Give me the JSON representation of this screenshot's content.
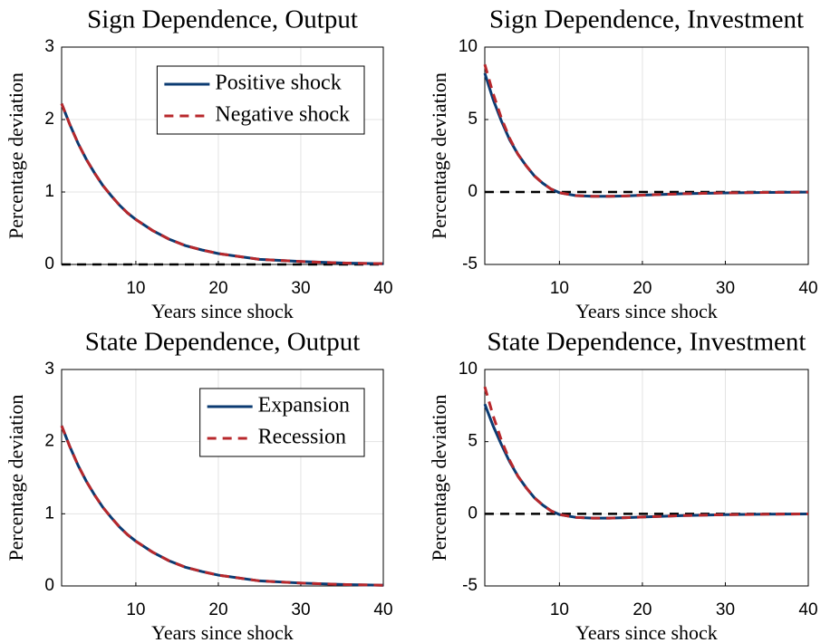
{
  "chart_data": [
    {
      "type": "line",
      "title": "Sign Dependence, Output",
      "xlabel": "Years since shock",
      "ylabel": "Percentage deviation",
      "x": [
        1,
        2,
        3,
        4,
        5,
        6,
        7,
        8,
        9,
        10,
        12,
        14,
        16,
        18,
        20,
        25,
        30,
        35,
        40
      ],
      "xlim": [
        1,
        40
      ],
      "xticks": [
        10,
        20,
        30,
        40
      ],
      "ylim": [
        0,
        3
      ],
      "yticks": [
        0,
        1,
        2,
        3
      ],
      "grid": true,
      "legend": "upper right",
      "reference_line": 0,
      "series": [
        {
          "name": "Positive shock",
          "color": "#0b3b72",
          "style": "solid",
          "values": [
            2.22,
            1.93,
            1.67,
            1.45,
            1.26,
            1.09,
            0.95,
            0.82,
            0.71,
            0.62,
            0.47,
            0.35,
            0.26,
            0.2,
            0.15,
            0.07,
            0.04,
            0.02,
            0.01
          ]
        },
        {
          "name": "Negative shock",
          "color": "#b8282c",
          "style": "dashed",
          "values": [
            2.22,
            1.93,
            1.67,
            1.45,
            1.26,
            1.09,
            0.95,
            0.82,
            0.71,
            0.62,
            0.47,
            0.35,
            0.26,
            0.2,
            0.15,
            0.07,
            0.04,
            0.02,
            0.01
          ]
        }
      ]
    },
    {
      "type": "line",
      "title": "Sign Dependence, Investment",
      "xlabel": "Years since shock",
      "ylabel": "Percentage deviation",
      "x": [
        1,
        2,
        3,
        4,
        5,
        6,
        7,
        8,
        9,
        10,
        12,
        14,
        16,
        18,
        20,
        25,
        30,
        35,
        40
      ],
      "xlim": [
        1,
        40
      ],
      "xticks": [
        10,
        20,
        30,
        40
      ],
      "ylim": [
        -5,
        10
      ],
      "yticks": [
        -5,
        0,
        5,
        10
      ],
      "grid": true,
      "reference_line": 0,
      "series": [
        {
          "color": "#0b3b72",
          "style": "solid",
          "values": [
            8.2,
            6.4,
            4.9,
            3.6,
            2.6,
            1.8,
            1.1,
            0.6,
            0.2,
            -0.05,
            -0.25,
            -0.3,
            -0.3,
            -0.27,
            -0.22,
            -0.12,
            -0.06,
            -0.03,
            -0.01
          ]
        },
        {
          "color": "#b8282c",
          "style": "dashed",
          "values": [
            8.8,
            6.8,
            5.1,
            3.7,
            2.6,
            1.8,
            1.1,
            0.6,
            0.2,
            -0.05,
            -0.25,
            -0.3,
            -0.3,
            -0.27,
            -0.22,
            -0.12,
            -0.06,
            -0.03,
            -0.01
          ]
        }
      ]
    },
    {
      "type": "line",
      "title": "State Dependence, Output",
      "xlabel": "Years since shock",
      "ylabel": "Percentage deviation",
      "x": [
        1,
        2,
        3,
        4,
        5,
        6,
        7,
        8,
        9,
        10,
        12,
        14,
        16,
        18,
        20,
        25,
        30,
        35,
        40
      ],
      "xlim": [
        1,
        40
      ],
      "xticks": [
        10,
        20,
        30,
        40
      ],
      "ylim": [
        0,
        3
      ],
      "yticks": [
        0,
        1,
        2,
        3
      ],
      "grid": true,
      "legend": "upper right",
      "series": [
        {
          "name": "Expansion",
          "color": "#0b3b72",
          "style": "solid",
          "values": [
            2.22,
            1.93,
            1.67,
            1.45,
            1.26,
            1.09,
            0.95,
            0.82,
            0.71,
            0.62,
            0.47,
            0.35,
            0.26,
            0.2,
            0.15,
            0.07,
            0.04,
            0.02,
            0.01
          ]
        },
        {
          "name": "Recession",
          "color": "#b8282c",
          "style": "dashed",
          "values": [
            2.22,
            1.93,
            1.67,
            1.45,
            1.26,
            1.09,
            0.95,
            0.82,
            0.71,
            0.62,
            0.47,
            0.35,
            0.26,
            0.2,
            0.15,
            0.07,
            0.04,
            0.02,
            0.01
          ]
        }
      ]
    },
    {
      "type": "line",
      "title": "State Dependence, Investment",
      "xlabel": "Years since shock",
      "ylabel": "Percentage deviation",
      "x": [
        1,
        2,
        3,
        4,
        5,
        6,
        7,
        8,
        9,
        10,
        12,
        14,
        16,
        18,
        20,
        25,
        30,
        35,
        40
      ],
      "xlim": [
        1,
        40
      ],
      "xticks": [
        10,
        20,
        30,
        40
      ],
      "ylim": [
        -5,
        10
      ],
      "yticks": [
        -5,
        0,
        5,
        10
      ],
      "grid": true,
      "reference_line": 0,
      "series": [
        {
          "color": "#0b3b72",
          "style": "solid",
          "values": [
            7.6,
            6.1,
            4.8,
            3.6,
            2.6,
            1.8,
            1.1,
            0.6,
            0.2,
            -0.05,
            -0.25,
            -0.3,
            -0.3,
            -0.27,
            -0.22,
            -0.12,
            -0.06,
            -0.03,
            -0.01
          ]
        },
        {
          "color": "#b8282c",
          "style": "dashed",
          "values": [
            8.8,
            6.8,
            5.1,
            3.7,
            2.6,
            1.8,
            1.1,
            0.6,
            0.2,
            -0.05,
            -0.25,
            -0.3,
            -0.3,
            -0.27,
            -0.22,
            -0.12,
            -0.06,
            -0.03,
            -0.01
          ]
        }
      ]
    }
  ]
}
